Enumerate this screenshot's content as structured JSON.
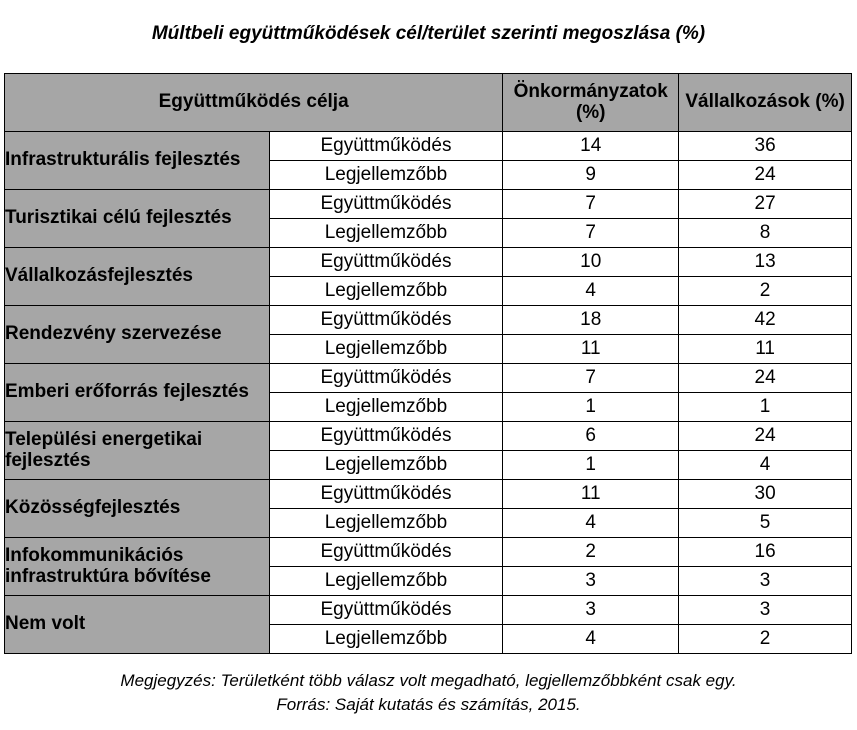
{
  "title": "Múltbeli együttműködések cél/terület szerinti megoszlása (%)",
  "table": {
    "headers": {
      "purpose": "Együttműködés célja",
      "municipalities": "Önkormányzatok (%)",
      "companies": "Vállalkozások (%)"
    },
    "rows": [
      {
        "category": "Infrastrukturális fejlesztés",
        "sub": [
          {
            "type": "Együttműködés",
            "municipalities": "14",
            "companies": "36"
          },
          {
            "type": "Legjellemzőbb",
            "municipalities": "9",
            "companies": "24"
          }
        ]
      },
      {
        "category": "Turisztikai célú fejlesztés",
        "sub": [
          {
            "type": "Együttműködés",
            "municipalities": "7",
            "companies": "27"
          },
          {
            "type": "Legjellemzőbb",
            "municipalities": "7",
            "companies": "8"
          }
        ]
      },
      {
        "category": "Vállalkozásfejlesztés",
        "sub": [
          {
            "type": "Együttműködés",
            "municipalities": "10",
            "companies": "13"
          },
          {
            "type": "Legjellemzőbb",
            "municipalities": "4",
            "companies": "2"
          }
        ]
      },
      {
        "category": "Rendezvény szervezése",
        "sub": [
          {
            "type": "Együttműködés",
            "municipalities": "18",
            "companies": "42"
          },
          {
            "type": "Legjellemzőbb",
            "municipalities": "11",
            "companies": "11"
          }
        ]
      },
      {
        "category": "Emberi erőforrás fejlesztés",
        "sub": [
          {
            "type": "Együttműködés",
            "municipalities": "7",
            "companies": "24"
          },
          {
            "type": "Legjellemzőbb",
            "municipalities": "1",
            "companies": "1"
          }
        ]
      },
      {
        "category": "Települési energetikai fejlesztés",
        "sub": [
          {
            "type": "Együttműködés",
            "municipalities": "6",
            "companies": "24"
          },
          {
            "type": "Legjellemzőbb",
            "municipalities": "1",
            "companies": "4"
          }
        ]
      },
      {
        "category": "Közösségfejlesztés",
        "sub": [
          {
            "type": "Együttműködés",
            "municipalities": "11",
            "companies": "30"
          },
          {
            "type": "Legjellemzőbb",
            "municipalities": "4",
            "companies": "5"
          }
        ]
      },
      {
        "category": "Infokommunikációs infrastruktúra bővítése",
        "sub": [
          {
            "type": "Együttműködés",
            "municipalities": "2",
            "companies": "16"
          },
          {
            "type": "Legjellemzőbb",
            "municipalities": "3",
            "companies": "3"
          }
        ]
      },
      {
        "category": "Nem volt",
        "sub": [
          {
            "type": "Együttműködés",
            "municipalities": "3",
            "companies": "3"
          },
          {
            "type": "Legjellemzőbb",
            "municipalities": "4",
            "companies": "2"
          }
        ]
      }
    ]
  },
  "notes": {
    "note": "Megjegyzés: Területként több válasz volt megadható, legjellemzőbbként csak egy.",
    "source": "Forrás: Saját kutatás és számítás, 2015."
  }
}
